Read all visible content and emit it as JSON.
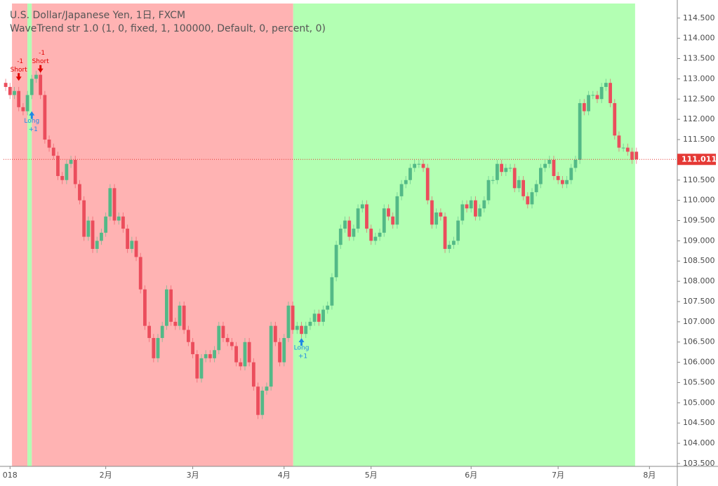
{
  "chart_data": {
    "type": "candlestick",
    "title": "U.S. Dollar/Japanese Yen, 1日, FXCM",
    "subtitle": "WaveTrend str 1.0 (1, 0, fixed, 1, 100000, Default, 0, percent, 0)",
    "up_color": "#53b987",
    "down_color": "#eb4d5c",
    "open": [
      112.9,
      112.8,
      112.6,
      112.7,
      112.3,
      112.2,
      112.6,
      113.0,
      113.1,
      112.6,
      111.5,
      111.3,
      111.1,
      110.6,
      110.5,
      110.9,
      111.0,
      110.4,
      110.0,
      109.1,
      109.5,
      108.8,
      109.0,
      109.2,
      109.6,
      110.3,
      109.5,
      109.6,
      109.3,
      108.8,
      109.0,
      108.6,
      107.8,
      106.9,
      106.6,
      106.1,
      106.6,
      106.9,
      107.8,
      107.0,
      106.9,
      107.4,
      106.8,
      106.5,
      106.2,
      105.6,
      106.1,
      106.2,
      106.1,
      106.3,
      106.9,
      106.6,
      106.5,
      106.4,
      106.0,
      105.9,
      106.5,
      106.0,
      105.4,
      104.7,
      105.3,
      105.4,
      106.9,
      106.5,
      106.0,
      106.6,
      107.4,
      106.8,
      106.9,
      106.7,
      106.9,
      107.0,
      107.2,
      107.0,
      107.3,
      107.4,
      108.1,
      108.9,
      109.3,
      109.5,
      109.1,
      109.3,
      109.8,
      109.9,
      109.3,
      109.0,
      109.1,
      109.2,
      109.8,
      109.6,
      109.4,
      110.1,
      110.4,
      110.5,
      110.8,
      110.9,
      110.9,
      110.8,
      110.0,
      109.4,
      109.7,
      109.6,
      108.8,
      108.9,
      109.0,
      109.5,
      109.9,
      109.8,
      110.0,
      109.6,
      109.8,
      110.0,
      110.5,
      110.5,
      110.9,
      110.7,
      110.8,
      110.8,
      110.3,
      110.5,
      110.1,
      109.9,
      110.2,
      110.4,
      110.8,
      110.9,
      111.0,
      110.6,
      110.5,
      110.4,
      110.5,
      110.8,
      111.0,
      112.4,
      112.2,
      112.6,
      112.6,
      112.5,
      112.8,
      112.9,
      112.4,
      111.6,
      111.3,
      111.3,
      111.2,
      111.2
    ],
    "high": [
      113.0,
      112.9,
      112.8,
      112.8,
      112.4,
      112.7,
      113.1,
      113.2,
      113.2,
      112.7,
      111.6,
      111.4,
      111.2,
      110.7,
      111.0,
      111.1,
      111.1,
      110.5,
      110.1,
      109.6,
      109.6,
      109.1,
      109.3,
      109.7,
      110.4,
      110.4,
      109.7,
      109.7,
      109.4,
      109.1,
      109.1,
      108.7,
      107.9,
      107.0,
      106.7,
      106.7,
      107.0,
      107.9,
      107.9,
      107.1,
      107.5,
      107.5,
      106.9,
      106.6,
      106.3,
      106.2,
      106.3,
      106.3,
      106.4,
      107.0,
      107.0,
      106.7,
      106.6,
      106.5,
      106.1,
      106.6,
      106.6,
      106.1,
      105.5,
      105.4,
      105.5,
      107.0,
      107.0,
      106.6,
      106.7,
      107.5,
      107.5,
      107.0,
      107.0,
      107.0,
      107.1,
      107.3,
      107.3,
      107.4,
      107.5,
      108.2,
      109.0,
      109.4,
      109.6,
      109.6,
      109.4,
      109.9,
      110.0,
      110.0,
      109.4,
      109.2,
      109.3,
      109.9,
      109.9,
      109.7,
      110.2,
      110.5,
      110.6,
      110.9,
      111.0,
      111.0,
      111.0,
      110.9,
      110.1,
      109.8,
      109.8,
      109.7,
      109.0,
      109.1,
      109.6,
      110.0,
      110.0,
      110.1,
      110.1,
      109.9,
      110.1,
      110.6,
      110.6,
      111.0,
      111.0,
      110.9,
      110.9,
      110.9,
      110.6,
      110.6,
      110.2,
      110.3,
      110.5,
      110.9,
      111.0,
      111.1,
      111.1,
      110.7,
      110.6,
      110.6,
      110.9,
      111.1,
      112.5,
      112.5,
      112.7,
      112.7,
      112.7,
      112.9,
      113.0,
      113.0,
      112.5,
      111.7,
      111.4,
      111.4,
      111.3,
      111.3
    ],
    "low": [
      112.7,
      112.5,
      112.5,
      112.2,
      112.1,
      112.1,
      112.5,
      112.9,
      112.5,
      111.4,
      111.2,
      111.0,
      110.5,
      110.4,
      110.4,
      110.8,
      110.3,
      109.9,
      109.0,
      109.0,
      108.7,
      108.7,
      108.9,
      109.1,
      109.5,
      109.4,
      109.4,
      109.2,
      108.7,
      108.7,
      108.5,
      107.7,
      106.8,
      106.5,
      106.0,
      106.0,
      106.5,
      106.8,
      106.9,
      106.8,
      106.8,
      106.7,
      106.4,
      106.1,
      105.5,
      105.5,
      106.0,
      106.0,
      106.0,
      106.2,
      106.5,
      106.4,
      106.3,
      105.9,
      105.8,
      105.8,
      105.9,
      105.3,
      104.6,
      104.6,
      105.2,
      105.3,
      106.4,
      105.9,
      105.9,
      106.5,
      106.7,
      106.7,
      106.6,
      106.6,
      106.8,
      106.9,
      106.9,
      106.9,
      107.2,
      107.3,
      108.0,
      108.8,
      109.2,
      109.0,
      109.0,
      109.2,
      109.7,
      109.2,
      108.9,
      108.9,
      109.0,
      109.1,
      109.5,
      109.3,
      109.3,
      110.0,
      110.3,
      110.4,
      110.7,
      110.8,
      110.7,
      109.9,
      109.3,
      109.3,
      109.5,
      108.7,
      108.7,
      108.8,
      108.9,
      109.4,
      109.7,
      109.7,
      109.5,
      109.5,
      109.7,
      109.9,
      110.4,
      110.4,
      110.6,
      110.6,
      110.7,
      110.2,
      110.2,
      110.0,
      109.8,
      109.8,
      110.1,
      110.3,
      110.7,
      110.8,
      110.5,
      110.4,
      110.3,
      110.3,
      110.4,
      110.7,
      110.9,
      112.1,
      112.1,
      112.5,
      112.4,
      112.4,
      112.7,
      112.3,
      111.5,
      111.2,
      111.2,
      111.1,
      110.9,
      110.9
    ],
    "close": [
      112.8,
      112.6,
      112.7,
      112.3,
      112.2,
      112.6,
      113.0,
      113.1,
      112.6,
      111.5,
      111.3,
      111.1,
      110.6,
      110.5,
      110.9,
      111.0,
      110.4,
      110.0,
      109.1,
      109.5,
      108.8,
      109.0,
      109.2,
      109.6,
      110.3,
      109.5,
      109.6,
      109.3,
      108.8,
      109.0,
      108.6,
      107.8,
      106.9,
      106.6,
      106.1,
      106.6,
      106.9,
      107.8,
      107.0,
      106.9,
      107.4,
      106.8,
      106.5,
      106.2,
      105.6,
      106.1,
      106.2,
      106.1,
      106.3,
      106.9,
      106.6,
      106.5,
      106.4,
      106.0,
      105.9,
      106.5,
      106.0,
      105.4,
      104.7,
      105.3,
      105.4,
      106.9,
      106.5,
      106.0,
      106.6,
      107.4,
      106.8,
      106.9,
      106.7,
      106.9,
      107.0,
      107.2,
      107.0,
      107.3,
      107.4,
      108.1,
      108.9,
      109.3,
      109.5,
      109.1,
      109.3,
      109.8,
      109.9,
      109.3,
      109.0,
      109.1,
      109.2,
      109.8,
      109.6,
      109.4,
      110.1,
      110.4,
      110.5,
      110.8,
      110.9,
      110.9,
      110.8,
      110.0,
      109.4,
      109.7,
      109.6,
      108.8,
      108.9,
      109.0,
      109.5,
      109.9,
      109.8,
      110.0,
      109.6,
      109.8,
      110.0,
      110.5,
      110.5,
      110.9,
      110.7,
      110.8,
      110.8,
      110.3,
      110.5,
      110.1,
      109.9,
      110.2,
      110.4,
      110.8,
      110.9,
      111.0,
      110.6,
      110.5,
      110.4,
      110.5,
      110.8,
      111.0,
      112.4,
      112.2,
      112.6,
      112.6,
      112.5,
      112.8,
      112.9,
      112.4,
      111.6,
      111.3,
      111.3,
      111.2,
      111.0,
      111.01
    ],
    "last_price": 111.011,
    "last_price_color": "#e53935",
    "zones": [
      {
        "start": 1.45,
        "end": 5,
        "color": "#ffb3b3"
      },
      {
        "start": 5,
        "end": 6,
        "color": "#b3ffb3"
      },
      {
        "start": 6,
        "end": 66.1,
        "color": "#ffb3b3"
      },
      {
        "start": 66.1,
        "end": 144.7,
        "color": "#b3ffb3"
      }
    ],
    "signals": [
      {
        "label": "Short",
        "qty": "-1",
        "index": 3,
        "price": 112.95,
        "color": "#e00000"
      },
      {
        "label": "Long",
        "qty": "+1",
        "index": 6,
        "price": 112.2,
        "color": "#1e88e5"
      },
      {
        "label": "Short",
        "qty": "-1",
        "index": 8,
        "price": 113.15,
        "color": "#e00000"
      },
      {
        "label": "Long",
        "qty": "+1",
        "index": 68,
        "price": 106.6,
        "color": "#1e88e5"
      }
    ],
    "xlim": [
      -0.5,
      154.4
    ],
    "xticks": [
      {
        "value": 1,
        "label": "018"
      },
      {
        "value": 23,
        "label": "2月"
      },
      {
        "value": 43,
        "label": "3月"
      },
      {
        "value": 64,
        "label": "4月"
      },
      {
        "value": 84,
        "label": "5月"
      },
      {
        "value": 107,
        "label": "6月"
      },
      {
        "value": 127,
        "label": "7月"
      },
      {
        "value": 148,
        "label": "8月"
      }
    ],
    "ylim": [
      103.43,
      114.86
    ],
    "yticks": [
      {
        "value": 103.5,
        "label": "103.500"
      },
      {
        "value": 104,
        "label": "104.000"
      },
      {
        "value": 104.5,
        "label": "104.500"
      },
      {
        "value": 105,
        "label": "105.000"
      },
      {
        "value": 105.5,
        "label": "105.500"
      },
      {
        "value": 106,
        "label": "106.000"
      },
      {
        "value": 106.5,
        "label": "106.500"
      },
      {
        "value": 107,
        "label": "107.000"
      },
      {
        "value": 107.5,
        "label": "107.500"
      },
      {
        "value": 108,
        "label": "108.000"
      },
      {
        "value": 108.5,
        "label": "108.500"
      },
      {
        "value": 109,
        "label": "109.000"
      },
      {
        "value": 109.5,
        "label": "109.500"
      },
      {
        "value": 110,
        "label": "110.000"
      },
      {
        "value": 110.5,
        "label": "110.500"
      },
      {
        "value": 111,
        "label": "111.000"
      },
      {
        "value": 111.5,
        "label": "111.500"
      },
      {
        "value": 112,
        "label": "112.000"
      },
      {
        "value": 112.5,
        "label": "112.500"
      },
      {
        "value": 113,
        "label": "113.000"
      },
      {
        "value": 113.5,
        "label": "113.500"
      },
      {
        "value": 114,
        "label": "114.000"
      },
      {
        "value": 114.5,
        "label": "114.500"
      }
    ]
  }
}
